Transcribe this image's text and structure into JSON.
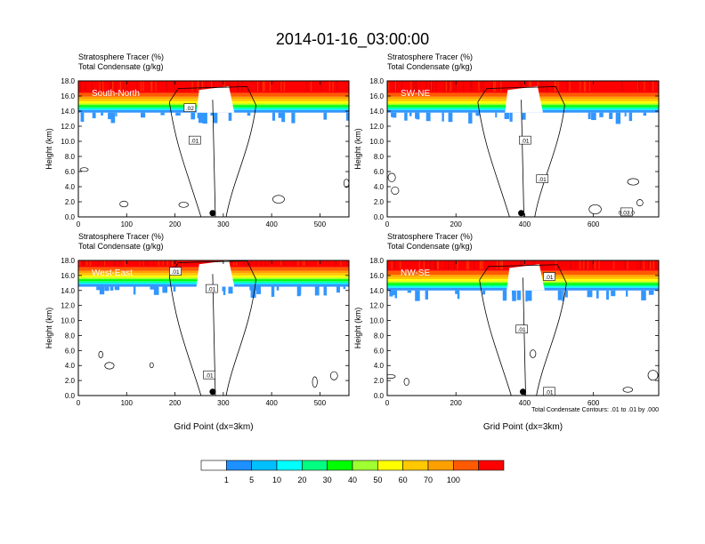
{
  "title": "2014-01-16_03:00:00",
  "panel_left_label": "Stratosphere Tracer   (%)",
  "panel_right_label": "Total Condensate   (g/kg)",
  "y_axis_label": "Height (km)",
  "x_axis_label": "Grid Point (dx=3km)",
  "contour_note": "Total Condensate Contours: .01 to .01 by .000",
  "contour_label": ".01",
  "colors": {
    "red": "#ff0000",
    "orange_red": "#ff5a00",
    "orange": "#ffa000",
    "gold": "#ffc800",
    "yellow": "#ffff00",
    "yellow_green": "#a0ff30",
    "green": "#00ff00",
    "sea_green": "#00ff80",
    "cyan": "#00ffff",
    "blue": "#3296ff",
    "white": "#ffffff"
  },
  "colorbar": {
    "ticks": [
      "1",
      "5",
      "10",
      "20",
      "30",
      "40",
      "50",
      "60",
      "70",
      "100"
    ],
    "colors": [
      "#ffffff",
      "#1e90ff",
      "#00bfff",
      "#00ffff",
      "#00ff80",
      "#00ff00",
      "#a0ff30",
      "#ffff00",
      "#ffc800",
      "#ffa000",
      "#ff5a00",
      "#ff0000"
    ]
  },
  "chart_data": [
    {
      "type": "heatmap",
      "name": "South-North",
      "xlim": [
        0,
        560
      ],
      "ylim": [
        0,
        18
      ],
      "xticks": [
        0,
        100,
        200,
        300,
        400,
        500
      ],
      "yticks": [
        "0.0",
        "2.0",
        "4.0",
        "6.0",
        "8.0",
        "10.0",
        "12.0",
        "14.0",
        "16.0",
        "18.0"
      ],
      "tracer_base_km": 14.0,
      "marker_x": 278,
      "contour_labels_at": [
        [
          230,
          14.4
        ],
        [
          240,
          10.1
        ]
      ],
      "labels": [
        ".02",
        ".01"
      ],
      "show_xlabel": false
    },
    {
      "type": "heatmap",
      "name": "SW-NE",
      "xlim": [
        0,
        790
      ],
      "ylim": [
        0,
        18
      ],
      "xticks": [
        0,
        200,
        400,
        600
      ],
      "yticks": [
        "0.0",
        "2.0",
        "4.0",
        "6.0",
        "8.0",
        "10.0",
        "12.0",
        "14.0",
        "16.0",
        "18.0"
      ],
      "tracer_base_km": 14.0,
      "marker_x": 390,
      "contour_labels_at": [
        [
          400,
          10.1
        ],
        [
          450,
          5.0
        ],
        [
          695,
          0.6
        ]
      ],
      "labels": [
        ".01",
        ".01",
        "0.03.0"
      ],
      "show_xlabel": false
    },
    {
      "type": "heatmap",
      "name": "West-East",
      "xlim": [
        0,
        560
      ],
      "ylim": [
        0,
        18
      ],
      "xticks": [
        0,
        100,
        200,
        300,
        400,
        500
      ],
      "yticks": [
        "0.0",
        "2.0",
        "4.0",
        "6.0",
        "8.0",
        "10.0",
        "12.0",
        "14.0",
        "16.0",
        "18.0"
      ],
      "tracer_base_km": 14.7,
      "marker_x": 278,
      "contour_labels_at": [
        [
          200,
          16.5
        ],
        [
          275,
          14.2
        ],
        [
          270,
          2.7
        ]
      ],
      "labels": [
        ".01",
        ".01",
        ".01"
      ],
      "show_xlabel": true
    },
    {
      "type": "heatmap",
      "name": "NW-SE",
      "xlim": [
        0,
        790
      ],
      "ylim": [
        0,
        18
      ],
      "xticks": [
        0,
        200,
        400,
        600
      ],
      "yticks": [
        "0.0",
        "2.0",
        "4.0",
        "6.0",
        "8.0",
        "10.0",
        "12.0",
        "14.0",
        "16.0",
        "18.0"
      ],
      "tracer_base_km": 14.2,
      "marker_x": 395,
      "contour_labels_at": [
        [
          470,
          15.8
        ],
        [
          390,
          8.8
        ],
        [
          470,
          0.5
        ]
      ],
      "labels": [
        ".01",
        ".01",
        ".01"
      ],
      "show_xlabel": true
    }
  ]
}
